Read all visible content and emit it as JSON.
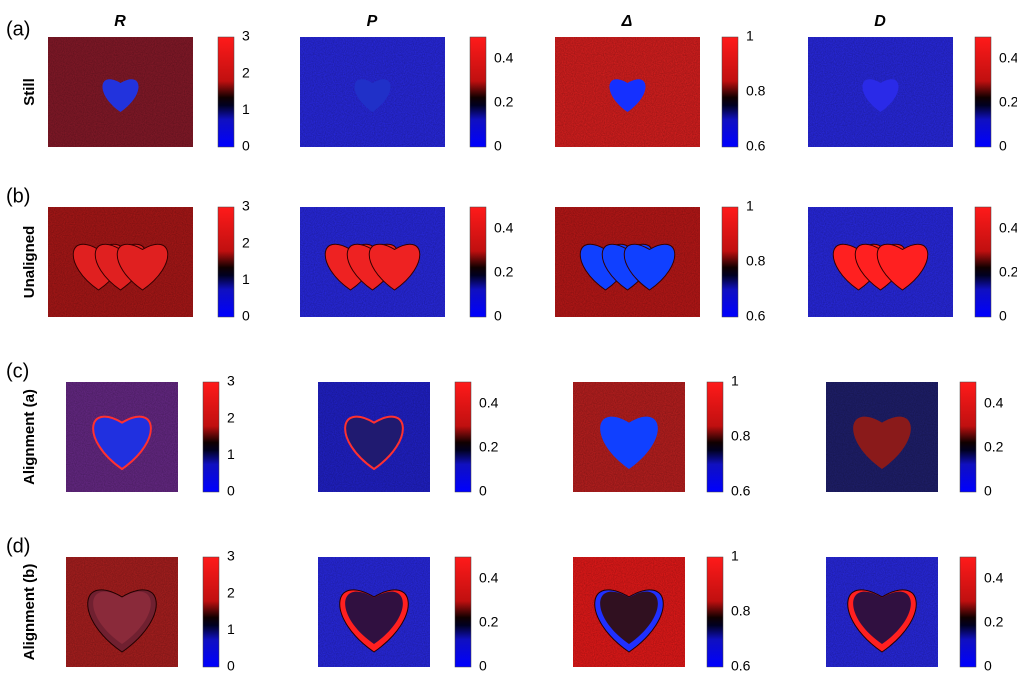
{
  "columns": [
    {
      "header": "R",
      "ticks": [
        "3",
        "2",
        "1",
        "0"
      ]
    },
    {
      "header": "P",
      "ticks": [
        "0.4",
        "0.2",
        "0"
      ]
    },
    {
      "header": "Δ",
      "ticks": [
        "1",
        "0.8",
        "0.6"
      ]
    },
    {
      "header": "D",
      "ticks": [
        "0.4",
        "0.2",
        "0"
      ]
    }
  ],
  "rows": [
    {
      "letter": "(a)",
      "label": "Still"
    },
    {
      "letter": "(b)",
      "label": "Unaligned"
    },
    {
      "letter": "(c)",
      "label": "Alignment (a)"
    },
    {
      "letter": "(d)",
      "label": "Alignment (b)"
    }
  ]
}
